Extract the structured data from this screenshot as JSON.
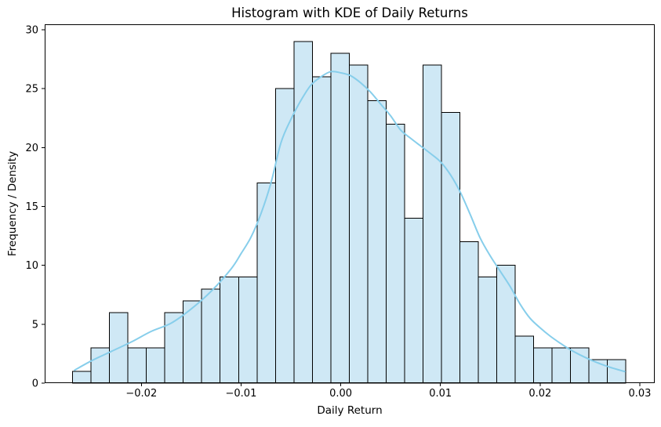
{
  "figure": {
    "title": "Histogram with KDE of Daily Returns",
    "xlabel": "Daily Return",
    "ylabel": "Frequency / Density"
  },
  "chart_data": {
    "type": "bar",
    "subtype": "histogram_with_kde_overlay",
    "title": "Histogram with KDE of Daily Returns",
    "xlabel": "Daily Return",
    "ylabel": "Frequency / Density",
    "grid": false,
    "legend": false,
    "n_bins": 30,
    "bin_start": -0.0269,
    "bin_width": 0.00185,
    "bin_counts": [
      1,
      3,
      6,
      3,
      3,
      6,
      7,
      8,
      9,
      9,
      17,
      25,
      29,
      26,
      28,
      27,
      24,
      22,
      14,
      27,
      23,
      12,
      9,
      10,
      4,
      3,
      3,
      3,
      2,
      2
    ],
    "total_count": 365,
    "xlim": [
      -0.0297,
      0.0315
    ],
    "ylim": [
      0,
      30.47
    ],
    "xticks": {
      "values": [
        -0.02,
        -0.01,
        0.0,
        0.01,
        0.02,
        0.03
      ],
      "labels": [
        "−0.02",
        "−0.01",
        "0.00",
        "0.01",
        "0.02",
        "0.03"
      ]
    },
    "yticks": {
      "values": [
        0,
        5,
        10,
        15,
        20,
        25,
        30
      ],
      "labels": [
        "0",
        "5",
        "10",
        "15",
        "20",
        "25",
        "30"
      ]
    },
    "kde_curve": [
      [
        -0.0267,
        1.1
      ],
      [
        -0.025,
        1.9
      ],
      [
        -0.023,
        2.7
      ],
      [
        -0.021,
        3.5
      ],
      [
        -0.019,
        4.4
      ],
      [
        -0.017,
        5.1
      ],
      [
        -0.015,
        6.3
      ],
      [
        -0.013,
        7.8
      ],
      [
        -0.011,
        9.7
      ],
      [
        -0.01,
        11.0
      ],
      [
        -0.009,
        12.4
      ],
      [
        -0.008,
        14.4
      ],
      [
        -0.007,
        17.0
      ],
      [
        -0.006,
        20.4
      ],
      [
        -0.005,
        22.4
      ],
      [
        -0.004,
        24.0
      ],
      [
        -0.003,
        25.3
      ],
      [
        -0.002,
        26.0
      ],
      [
        -0.001,
        26.45
      ],
      [
        0.0,
        26.35
      ],
      [
        0.001,
        26.1
      ],
      [
        0.002,
        25.5
      ],
      [
        0.003,
        24.7
      ],
      [
        0.004,
        23.7
      ],
      [
        0.005,
        22.7
      ],
      [
        0.006,
        21.5
      ],
      [
        0.007,
        20.8
      ],
      [
        0.008,
        20.15
      ],
      [
        0.009,
        19.5
      ],
      [
        0.01,
        18.8
      ],
      [
        0.011,
        17.7
      ],
      [
        0.012,
        16.2
      ],
      [
        0.013,
        14.3
      ],
      [
        0.014,
        12.3
      ],
      [
        0.015,
        10.8
      ],
      [
        0.016,
        9.5
      ],
      [
        0.017,
        8.2
      ],
      [
        0.018,
        6.7
      ],
      [
        0.019,
        5.5
      ],
      [
        0.02,
        4.7
      ],
      [
        0.021,
        4.0
      ],
      [
        0.022,
        3.4
      ],
      [
        0.023,
        2.85
      ],
      [
        0.024,
        2.4
      ],
      [
        0.025,
        2.0
      ],
      [
        0.026,
        1.65
      ],
      [
        0.027,
        1.35
      ],
      [
        0.028,
        1.1
      ],
      [
        0.0285,
        0.98
      ]
    ],
    "colors": {
      "bar_fill": "#cfe8f5",
      "bar_edge": "#000000",
      "kde_line": "#87ceeb",
      "axis": "#000000",
      "text": "#000000",
      "background": "#ffffff"
    }
  }
}
